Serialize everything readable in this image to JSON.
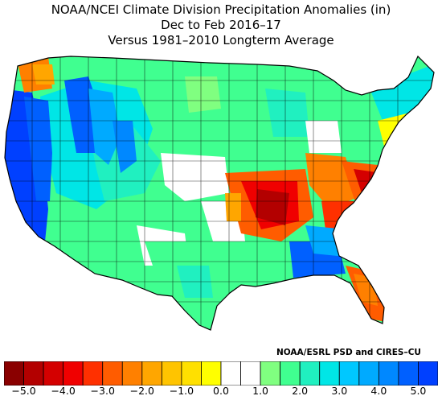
{
  "title_lines": [
    "NOAA/NCEI Climate Division Precipitation Anomalies (in)",
    "Dec to Feb 2016–17",
    "Versus 1981–2010 Longterm Average"
  ],
  "credit": "NOAA/ESRL PSD and CIRES–CU",
  "colorbar": {
    "colors": [
      "#8a0000",
      "#b30000",
      "#d40000",
      "#f00000",
      "#ff3000",
      "#ff5c00",
      "#ff8000",
      "#ffa600",
      "#ffc400",
      "#ffe000",
      "#ffff00",
      "#ffffff",
      "#ffffff",
      "#80ff80",
      "#40ff90",
      "#20f0c0",
      "#00e6e6",
      "#00c8ff",
      "#00aaff",
      "#0088ff",
      "#0060ff",
      "#0040ff"
    ],
    "tick_labels": [
      "−5.0",
      "−4.0",
      "−3.0",
      "−2.0",
      "−1.0",
      "0.0",
      "1.0",
      "2.0",
      "3.0",
      "4.0",
      "5.0"
    ],
    "min": -5.0,
    "max": 5.0,
    "units": "in"
  },
  "colors": {
    "outline": "#000000",
    "division_border": "#000000",
    "background": "#ffffff"
  }
}
